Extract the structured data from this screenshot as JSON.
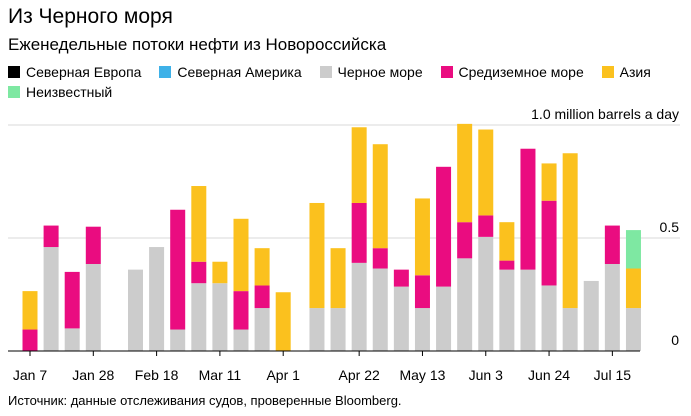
{
  "title": "Из Черного моря",
  "subtitle": "Еженедельные потоки нефти из Новороссийска",
  "source": "Источник: данные отслеживания судов, проверенные Bloomberg.",
  "legend": [
    {
      "name": "Северная Европа",
      "color": "#000000"
    },
    {
      "name": "Северная Америка",
      "color": "#3eb1e8"
    },
    {
      "name": "Черное море",
      "color": "#cccccc"
    },
    {
      "name": "Средиземное море",
      "color": "#ea0c80"
    },
    {
      "name": "Азия",
      "color": "#fbc11e"
    },
    {
      "name": "Неизвестный",
      "color": "#7ee8a2"
    }
  ],
  "chart_data": {
    "type": "bar",
    "stacked": true,
    "title": "Из Черного моря",
    "subtitle": "Еженедельные потоки нефти из Новороссийска",
    "ylabel": "1.0 million barrels a day",
    "ylim": [
      0,
      1.0
    ],
    "y_ticks": [
      {
        "value": 0,
        "label": "0"
      },
      {
        "value": 0.5,
        "label": "0.5"
      },
      {
        "value": 1.0,
        "label": "1.0 million barrels a day"
      }
    ],
    "x_tick_labels": [
      "Jan 7",
      "Jan 28",
      "Feb 18",
      "Mar 11",
      "Apr 1",
      "Apr 22",
      "May 13",
      "Jun 3",
      "Jun 24",
      "Jul 15"
    ],
    "x_tick_weeks": [
      0,
      3,
      6,
      9,
      12,
      15,
      18,
      21,
      24,
      27
    ],
    "series_order": [
      "Черное море",
      "Средиземное море",
      "Азия",
      "Неизвестный"
    ],
    "weeks": [
      {
        "w": 0.0,
        "Черное море": 0.0,
        "Средиземное море": 0.095,
        "Азия": 0.17,
        "Неизвестный": 0
      },
      {
        "w": 1.0,
        "Черное море": 0.46,
        "Средиземное море": 0.095,
        "Азия": 0,
        "Неизвестный": 0
      },
      {
        "w": 2.0,
        "Черное море": 0.1,
        "Средиземное море": 0.25,
        "Азия": 0,
        "Неизвестный": 0
      },
      {
        "w": 3.0,
        "Черное море": 0.385,
        "Средиземное море": 0.165,
        "Азия": 0,
        "Неизвестный": 0
      },
      {
        "w": 5.0,
        "Черное море": 0.36,
        "Средиземное море": 0,
        "Азия": 0,
        "Неизвестный": 0
      },
      {
        "w": 6.0,
        "Черное море": 0.46,
        "Средиземное море": 0,
        "Азия": 0,
        "Неизвестный": 0
      },
      {
        "w": 7.0,
        "Черное море": 0.095,
        "Средиземное море": 0.53,
        "Азия": 0,
        "Неизвестный": 0
      },
      {
        "w": 8.0,
        "Черное море": 0.3,
        "Средиземное море": 0.095,
        "Азия": 0.335,
        "Неизвестный": 0
      },
      {
        "w": 9.0,
        "Черное море": 0.3,
        "Средиземное море": 0,
        "Азия": 0.095,
        "Неизвестный": 0
      },
      {
        "w": 10.0,
        "Черное море": 0.095,
        "Средиземное море": 0.17,
        "Азия": 0.32,
        "Неизвестный": 0
      },
      {
        "w": 11.0,
        "Черное море": 0.19,
        "Средиземное море": 0.1,
        "Азия": 0.165,
        "Неизвестный": 0
      },
      {
        "w": 12.0,
        "Черное море": 0.0,
        "Средиземное море": 0,
        "Азия": 0.26,
        "Неизвестный": 0
      },
      {
        "w": 13.0,
        "Черное море": 0.0,
        "Средиземное море": 0.0,
        "Азия": 0,
        "Неизвестный": 0
      },
      {
        "w": 13.6,
        "Черное море": 0.19,
        "Средиземное море": 0,
        "Азия": 0.465,
        "Неизвестный": 0
      },
      {
        "w": 14.6,
        "Черное море": 0.19,
        "Средиземное море": 0,
        "Азия": 0.265,
        "Неизвестный": 0
      },
      {
        "w": 15.6,
        "Черное море": 0.39,
        "Средиземное море": 0.265,
        "Азия": 0.335,
        "Неизвестный": 0
      },
      {
        "w": 16.6,
        "Черное море": 0.365,
        "Средиземное море": 0.09,
        "Азия": 0.46,
        "Неизвестный": 0
      },
      {
        "w": 17.6,
        "Черное море": 0.285,
        "Средиземное море": 0.075,
        "Азия": 0.0,
        "Неизвестный": 0
      },
      {
        "w": 18.6,
        "Черное море": 0.19,
        "Средиземное море": 0.145,
        "Азия": 0.34,
        "Неизвестный": 0
      },
      {
        "w": 19.6,
        "Черное море": 0.285,
        "Средиземное море": 0.53,
        "Азия": 0,
        "Неизвестный": 0
      },
      {
        "w": 20.6,
        "Черное море": 0.41,
        "Средиземное море": 0.16,
        "Азия": 0.435,
        "Неизвестный": 0
      },
      {
        "w": 21.6,
        "Черное море": 0.505,
        "Средиземное море": 0.095,
        "Азия": 0.38,
        "Неизвестный": 0
      },
      {
        "w": 22.6,
        "Черное море": 0.36,
        "Средиземное море": 0.04,
        "Азия": 0.17,
        "Неизвестный": 0
      },
      {
        "w": 23.6,
        "Черное море": 0.36,
        "Средиземное море": 0.535,
        "Азия": 0,
        "Неизвестный": 0
      },
      {
        "w": 24.6,
        "Черное море": 0.29,
        "Средиземное море": 0.375,
        "Азия": 0.165,
        "Неизвестный": 0
      },
      {
        "w": 25.6,
        "Черное море": 0.19,
        "Средиземное море": 0,
        "Азия": 0.685,
        "Неизвестный": 0
      },
      {
        "w": 26.6,
        "Черное море": 0.31,
        "Средиземное море": 0,
        "Азия": 0.0,
        "Неизвестный": 0
      },
      {
        "w": 27.6,
        "Черное море": 0.385,
        "Средиземное море": 0.17,
        "Азия": 0,
        "Неизвестный": 0
      },
      {
        "w": 28.6,
        "Черное море": 0.19,
        "Средиземное море": 0,
        "Азия": 0.175,
        "Неизвестный": 0.17
      }
    ]
  }
}
